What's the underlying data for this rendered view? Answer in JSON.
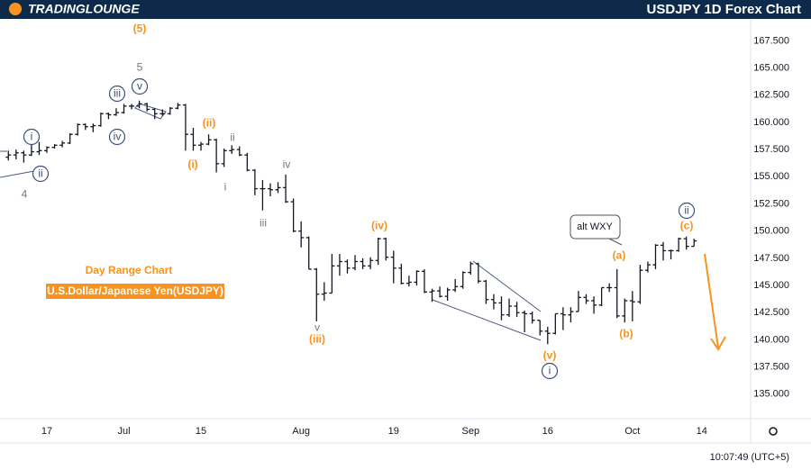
{
  "brand": "TRADINGLOUNGE",
  "chart_data": {
    "type": "ohlc",
    "title": "USDJPY 1D Forex Chart",
    "color": "#131722",
    "grid": false,
    "categories": [
      null,
      null,
      null,
      null,
      null,
      "17",
      null,
      null,
      null,
      null,
      null,
      null,
      null,
      null,
      null,
      "Jul",
      null,
      null,
      null,
      null,
      null,
      null,
      null,
      null,
      null,
      "15",
      null,
      null,
      null,
      null,
      null,
      null,
      null,
      null,
      null,
      null,
      null,
      null,
      "Aug",
      null,
      null,
      null,
      null,
      null,
      null,
      null,
      null,
      null,
      null,
      null,
      "19",
      null,
      null,
      null,
      null,
      null,
      null,
      null,
      null,
      null,
      "Sep",
      null,
      null,
      null,
      null,
      null,
      null,
      null,
      null,
      null,
      "16",
      null,
      null,
      null,
      null,
      null,
      null,
      null,
      null,
      null,
      null,
      "Oct",
      null,
      null,
      null,
      null,
      null,
      null,
      null,
      null,
      "14",
      null,
      null,
      null,
      null
    ],
    "open": [
      156.8,
      157.0,
      157.2,
      157.0,
      157.3,
      157.4,
      157.7,
      157.9,
      158.1,
      158.9,
      159.8,
      159.6,
      159.7,
      160.8,
      160.7,
      160.9,
      161.5,
      161.5,
      161.7,
      161.2,
      160.8,
      160.8,
      161.3,
      161.6,
      158.9,
      157.9,
      158.0,
      158.4,
      156.2,
      157.4,
      157.5,
      157.0,
      155.6,
      153.9,
      153.9,
      153.8,
      154.0,
      152.7,
      150.0,
      149.4,
      146.5,
      144.2,
      144.3,
      146.8,
      147.2,
      146.6,
      147.2,
      146.8,
      147.3,
      149.3,
      147.6,
      146.6,
      145.2,
      145.3,
      146.3,
      144.4,
      144.5,
      144.0,
      144.6,
      144.9,
      146.2,
      147.0,
      145.4,
      143.7,
      143.4,
      142.3,
      143.1,
      142.5,
      142.4,
      141.8,
      140.8,
      140.6,
      142.4,
      142.3,
      142.6,
      143.9,
      143.6,
      143.2,
      144.8,
      144.8,
      142.2,
      143.6,
      143.5,
      146.4,
      146.9,
      148.7,
      148.2,
      148.2,
      149.3,
      148.6,
      null,
      null,
      null,
      null,
      null
    ],
    "high": [
      157.4,
      157.5,
      157.4,
      158.3,
      158.2,
      157.8,
      158.0,
      158.3,
      159.0,
      159.9,
      159.9,
      159.9,
      160.9,
      160.9,
      161.3,
      161.7,
      161.7,
      162.0,
      161.8,
      161.3,
      161.2,
      161.4,
      161.8,
      161.7,
      159.5,
      158.2,
      158.9,
      158.5,
      157.6,
      157.9,
      157.8,
      157.2,
      155.7,
      154.7,
      154.4,
      154.5,
      155.2,
      153.0,
      150.9,
      149.5,
      146.6,
      145.3,
      147.9,
      147.9,
      147.4,
      147.8,
      147.5,
      147.6,
      149.4,
      149.4,
      148.2,
      147.0,
      145.9,
      146.4,
      146.5,
      144.7,
      144.9,
      144.8,
      145.6,
      146.3,
      147.2,
      147.1,
      145.5,
      144.2,
      144.0,
      143.8,
      143.5,
      142.7,
      142.6,
      141.8,
      141.2,
      142.4,
      143.0,
      143.0,
      144.5,
      144.2,
      144.0,
      144.8,
      145.2,
      146.5,
      143.8,
      144.5,
      146.9,
      147.2,
      148.8,
      149.0,
      148.3,
      149.4,
      149.5,
      149.3,
      null,
      null,
      null,
      null,
      null
    ],
    "low": [
      156.5,
      156.6,
      156.3,
      156.9,
      157.0,
      157.2,
      157.6,
      157.7,
      158.0,
      158.8,
      159.3,
      159.1,
      159.6,
      160.3,
      160.6,
      160.8,
      161.2,
      161.3,
      161.0,
      160.3,
      160.6,
      160.7,
      161.2,
      157.4,
      157.4,
      157.4,
      157.9,
      155.4,
      155.9,
      157.1,
      156.9,
      155.5,
      153.3,
      151.9,
      153.2,
      153.5,
      152.6,
      149.9,
      148.5,
      146.5,
      141.7,
      143.6,
      144.3,
      145.9,
      146.1,
      146.4,
      146.5,
      146.5,
      146.9,
      147.3,
      145.2,
      145.1,
      144.9,
      145.0,
      144.3,
      143.5,
      143.9,
      143.6,
      144.4,
      144.7,
      146.0,
      145.2,
      143.3,
      142.8,
      141.8,
      142.1,
      142.1,
      140.7,
      141.5,
      140.4,
      139.6,
      140.5,
      140.9,
      141.6,
      142.6,
      143.3,
      142.4,
      143.1,
      144.4,
      142.0,
      141.6,
      141.7,
      143.3,
      146.2,
      146.5,
      147.3,
      147.4,
      148.1,
      148.3,
      148.6,
      null,
      null,
      null,
      null,
      null
    ],
    "close": [
      157.0,
      157.2,
      157.0,
      157.3,
      157.4,
      157.7,
      157.9,
      158.1,
      158.9,
      159.8,
      159.6,
      159.7,
      160.8,
      160.7,
      160.9,
      161.5,
      161.5,
      161.7,
      161.2,
      160.8,
      160.8,
      161.3,
      161.6,
      158.9,
      157.9,
      158.0,
      158.4,
      156.2,
      157.4,
      157.5,
      157.0,
      155.6,
      153.9,
      153.9,
      153.8,
      154.0,
      152.7,
      150.0,
      149.4,
      146.5,
      144.2,
      144.3,
      146.8,
      147.2,
      146.6,
      147.2,
      146.8,
      147.3,
      149.3,
      147.6,
      146.6,
      145.2,
      145.3,
      146.3,
      144.4,
      144.5,
      144.0,
      144.6,
      144.9,
      146.2,
      147.0,
      145.4,
      143.7,
      143.4,
      142.3,
      143.1,
      142.5,
      142.4,
      141.8,
      140.8,
      140.6,
      142.4,
      142.3,
      142.6,
      143.9,
      143.6,
      143.2,
      144.8,
      144.8,
      142.2,
      143.6,
      143.5,
      146.4,
      146.9,
      148.7,
      148.2,
      148.2,
      149.3,
      148.6,
      149.1,
      null,
      null,
      null,
      null,
      null
    ],
    "ylim": [
      132.75,
      169.6
    ],
    "yticks": [
      {
        "value": 135,
        "label": "135.000"
      },
      {
        "value": 137.5,
        "label": "137.500"
      },
      {
        "value": 140,
        "label": "140.000"
      },
      {
        "value": 142.5,
        "label": "142.500"
      },
      {
        "value": 145,
        "label": "145.000"
      },
      {
        "value": 147.5,
        "label": "147.500"
      },
      {
        "value": 150,
        "label": "150.000"
      },
      {
        "value": 152.5,
        "label": "152.500"
      },
      {
        "value": 155,
        "label": "155.000"
      },
      {
        "value": 157.5,
        "label": "157.500"
      },
      {
        "value": 160,
        "label": "160.000"
      },
      {
        "value": 162.5,
        "label": "162.500"
      },
      {
        "value": 165,
        "label": "165.000"
      },
      {
        "value": 167.5,
        "label": "167.500"
      }
    ],
    "wave_labels": [
      "4",
      "i",
      "ii",
      "(5)",
      "5",
      "iii",
      "v",
      "iv",
      "(ii)",
      "(i)",
      "ii",
      "i",
      "iv",
      "iii",
      "v",
      "(iii)",
      "(iv)",
      "(v)",
      "i",
      "(a)",
      "(b)",
      "ii",
      "(c)"
    ],
    "callout": "alt WXY",
    "side_title": "Day Range Chart",
    "instrument": "U.S.Dollar/Japanese Yen(USDJPY)",
    "clock": "10:07:49 (UTC+5)"
  }
}
